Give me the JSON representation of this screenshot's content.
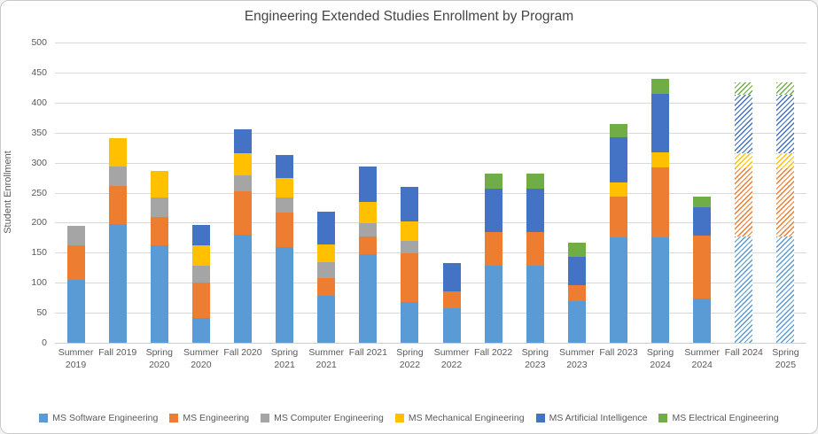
{
  "window": {
    "background": "#ffffff"
  },
  "chart_data": {
    "type": "bar",
    "stacked": true,
    "title": "Engineering Extended Studies Enrollment by Program",
    "xlabel": "",
    "ylabel": "Student Enrollment",
    "ylim": [
      0,
      500
    ],
    "yticks": [
      0,
      50,
      100,
      150,
      200,
      250,
      300,
      350,
      400,
      450,
      500
    ],
    "grid": true,
    "legend_position": "bottom",
    "categories": [
      "Summer 2019",
      "Fall 2019",
      "Spring 2020",
      "Summer 2020",
      "Fall 2020",
      "Spring 2021",
      "Summer 2021",
      "Fall 2021",
      "Spring 2022",
      "Summer 2022",
      "Fall 2022",
      "Spring 2023",
      "Summer 2023",
      "Fall 2023",
      "Spring 2024",
      "Summer 2024",
      "Fall 2024",
      "Spring 2025"
    ],
    "forecast_categories": [
      "Fall 2024",
      "Spring 2025"
    ],
    "forecast_style": "diagonal-hatch",
    "series": [
      {
        "name": "MS Software Engineering",
        "color": "#5B9BD5",
        "values": [
          105,
          197,
          162,
          42,
          180,
          160,
          78,
          147,
          68,
          57,
          128,
          128,
          69,
          175,
          175,
          74,
          177,
          177
        ]
      },
      {
        "name": "MS Engineering",
        "color": "#ED7D31",
        "values": [
          58,
          64,
          47,
          58,
          72,
          57,
          30,
          30,
          81,
          29,
          57,
          57,
          27,
          68,
          117,
          105,
          114,
          114
        ]
      },
      {
        "name": "MS Computer Engineering",
        "color": "#A5A5A5",
        "values": [
          32,
          33,
          33,
          28,
          27,
          25,
          26,
          22,
          21,
          0,
          0,
          0,
          0,
          0,
          0,
          0,
          0,
          0
        ]
      },
      {
        "name": "MS Mechanical Engineering",
        "color": "#FFC000",
        "values": [
          0,
          47,
          44,
          34,
          36,
          32,
          30,
          35,
          32,
          0,
          0,
          0,
          0,
          24,
          25,
          0,
          24,
          24
        ]
      },
      {
        "name": "MS Artificial Intelligence",
        "color": "#4472C4",
        "values": [
          0,
          0,
          0,
          34,
          41,
          39,
          55,
          60,
          58,
          47,
          72,
          72,
          47,
          75,
          97,
          46,
          98,
          98
        ]
      },
      {
        "name": "MS Electrical Engineering",
        "color": "#70AD47",
        "values": [
          0,
          0,
          0,
          0,
          0,
          0,
          0,
          0,
          0,
          0,
          25,
          25,
          23,
          23,
          26,
          18,
          20,
          20
        ]
      }
    ],
    "colors": {
      "grid": "#d9d9d9",
      "axis_text": "#595959",
      "title_text": "#454545",
      "border": "#c9c9c9"
    }
  }
}
